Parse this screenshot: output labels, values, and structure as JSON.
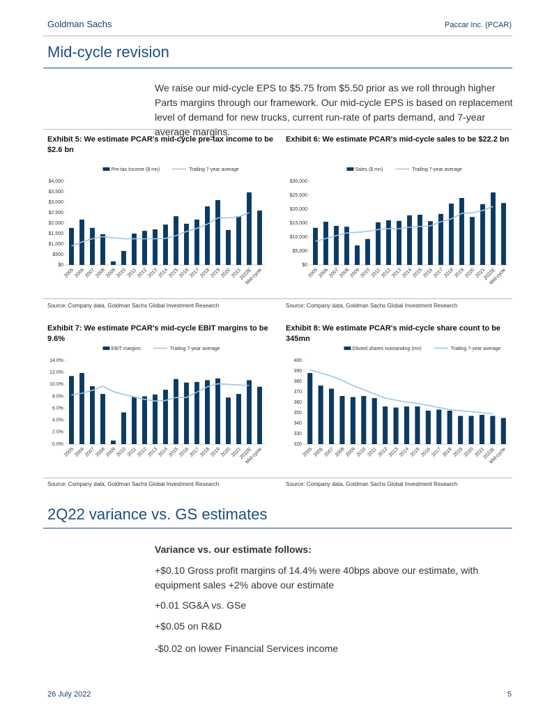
{
  "header": {
    "left": "Goldman Sachs",
    "right": "Paccar Inc. (PCAR)"
  },
  "section1": {
    "title": "Mid-cycle revision",
    "paragraph": "We raise our mid-cycle EPS to $5.75 from $5.50 prior as we roll through higher Parts margins through our framework. Our mid-cycle EPS is based on replacement level of demand for new trucks, current run-rate of parts demand, and 7-year average margins."
  },
  "chart_data": [
    {
      "type": "bar",
      "title": "Exhibit 5: We estimate PCAR's mid-cycle pre-tax income to be $2.6 bn",
      "categories": [
        "2005",
        "2006",
        "2007",
        "2008",
        "2009",
        "2010",
        "2011",
        "2012",
        "2013",
        "2014",
        "2015",
        "2016",
        "2017",
        "2018",
        "2019",
        "2020",
        "2021",
        "2022E",
        "Mid-cycle"
      ],
      "series": [
        {
          "name": "Pre-tax Income ($ mn)",
          "type": "bar",
          "color": "#0b3a63",
          "values": [
            1770,
            2170,
            1770,
            1470,
            170,
            670,
            1500,
            1630,
            1700,
            1930,
            2330,
            1970,
            2170,
            2800,
            3100,
            1670,
            2330,
            3470,
            2600
          ]
        },
        {
          "name": "Trailing 7-year average",
          "type": "line",
          "color": "#9dc3e6",
          "values": [
            900,
            1100,
            1250,
            1350,
            1300,
            1250,
            1250,
            1250,
            1250,
            1270,
            1400,
            1600,
            1750,
            1950,
            2250,
            2250,
            2300,
            2500,
            null
          ]
        }
      ],
      "ylim": [
        0,
        4000
      ],
      "yticks": [
        {
          "value": 0,
          "label": "$0"
        },
        {
          "value": 500,
          "label": "$500"
        },
        {
          "value": 1000,
          "label": "$1,000"
        },
        {
          "value": 1500,
          "label": "$1,500"
        },
        {
          "value": 2000,
          "label": "$2,000"
        },
        {
          "value": 2500,
          "label": "$2,500"
        },
        {
          "value": 3000,
          "label": "$3,000"
        },
        {
          "value": 3500,
          "label": "$3,500"
        },
        {
          "value": 4000,
          "label": "$4,000"
        }
      ],
      "legend": "top",
      "source": "Source: Company data, Goldman Sachs Global Investment Research"
    },
    {
      "type": "bar",
      "title": "Exhibit 6: We estimate PCAR's mid-cycle sales to be $22.2 bn",
      "categories": [
        "2005",
        "2006",
        "2007",
        "2008",
        "2009",
        "2010",
        "2011",
        "2012",
        "2013",
        "2014",
        "2015",
        "2016",
        "2017",
        "2018",
        "2019",
        "2020",
        "2021",
        "2022E",
        "Mid-cycle"
      ],
      "series": [
        {
          "name": "Sales ($ mn)",
          "type": "bar",
          "color": "#0b3a63",
          "values": [
            13300,
            15500,
            14000,
            13700,
            7000,
            9300,
            15300,
            16000,
            15800,
            17800,
            18000,
            15700,
            18300,
            22000,
            24000,
            17200,
            21800,
            26000,
            22200
          ]
        },
        {
          "name": "Trailing 7-year average",
          "type": "line",
          "color": "#9dc3e6",
          "values": [
            8500,
            9500,
            10500,
            11500,
            11700,
            12000,
            12700,
            13000,
            13000,
            13500,
            13800,
            14000,
            15500,
            16500,
            18500,
            18700,
            19500,
            21000,
            null
          ]
        }
      ],
      "ylim": [
        0,
        30000
      ],
      "yticks": [
        {
          "value": 0,
          "label": "$0"
        },
        {
          "value": 5000,
          "label": "$5,000"
        },
        {
          "value": 10000,
          "label": "$10,000"
        },
        {
          "value": 15000,
          "label": "$15,000"
        },
        {
          "value": 20000,
          "label": "$20,000"
        },
        {
          "value": 25000,
          "label": "$25,000"
        },
        {
          "value": 30000,
          "label": "$30,000"
        }
      ],
      "legend": "top",
      "source": "Source: Company data, Goldman Sachs Global Investment Research"
    },
    {
      "type": "bar",
      "title": "Exhibit 7: We estimate PCAR's mid-cycle EBIT margins to be 9.6%",
      "categories": [
        "2005",
        "2006",
        "2007",
        "2008",
        "2009",
        "2010",
        "2011",
        "2012",
        "2013",
        "2014",
        "2015",
        "2016",
        "2017",
        "2018",
        "2019",
        "2020",
        "2021",
        "2022E",
        "Mid-cycle"
      ],
      "series": [
        {
          "name": "EBIT margins",
          "type": "bar",
          "color": "#0b3a63",
          "values": [
            11.4,
            11.9,
            9.7,
            8.4,
            0.6,
            5.3,
            7.9,
            8.0,
            8.3,
            9.1,
            10.9,
            10.3,
            10.4,
            10.7,
            11.0,
            7.8,
            8.4,
            10.7,
            9.6
          ]
        },
        {
          "name": "Trailing 7-year average",
          "type": "line",
          "color": "#9dc3e6",
          "values": [
            8.2,
            8.5,
            9.0,
            9.7,
            8.8,
            8.3,
            7.9,
            7.5,
            7.2,
            7.3,
            7.8,
            7.8,
            8.7,
            9.6,
            10.1,
            10.0,
            9.9,
            9.8,
            null
          ]
        }
      ],
      "ylim": [
        0,
        14
      ],
      "yticks": [
        {
          "value": 0,
          "label": "0.0%"
        },
        {
          "value": 2,
          "label": "2.0%"
        },
        {
          "value": 4,
          "label": "4.0%"
        },
        {
          "value": 6,
          "label": "6.0%"
        },
        {
          "value": 8,
          "label": "8.0%"
        },
        {
          "value": 10,
          "label": "10.0%"
        },
        {
          "value": 12,
          "label": "12.0%"
        },
        {
          "value": 14,
          "label": "14.0%"
        }
      ],
      "legend": "top",
      "source": "Source: Company data, Goldman Sachs Global Investment Research"
    },
    {
      "type": "bar",
      "title": "Exhibit 8: We estimate PCAR's mid-cycle share count to be 345mn",
      "categories": [
        "2005",
        "2006",
        "2007",
        "2008",
        "2009",
        "2010",
        "2011",
        "2012",
        "2013",
        "2014",
        "2015",
        "2016",
        "2017",
        "2018",
        "2019",
        "2020",
        "2021",
        "2022E",
        "Mid-cycle"
      ],
      "series": [
        {
          "name": "Diluted shares outstanding (mn)",
          "type": "bar",
          "color": "#0b3a63",
          "values": [
            388,
            376,
            373,
            366,
            365,
            366,
            364,
            356,
            355,
            356,
            356,
            352,
            353,
            352,
            347,
            347,
            348,
            347,
            345
          ]
        },
        {
          "name": "Trailing 7-year average",
          "type": "line",
          "color": "#9dc3e6",
          "values": [
            391,
            388,
            385,
            381,
            376,
            372,
            368,
            364,
            362,
            360,
            359,
            357,
            355,
            353,
            352,
            351,
            350,
            349,
            null
          ]
        }
      ],
      "ylim": [
        320,
        400
      ],
      "yticks": [
        320,
        330,
        340,
        350,
        360,
        370,
        380,
        390,
        400
      ],
      "legend": "top",
      "source": "Source: Company data, Goldman Sachs Global Investment Research"
    }
  ],
  "section2": {
    "title": "2Q22 variance vs. GS estimates",
    "subtitle": "Variance vs. our estimate follows:",
    "items": [
      "+$0.10 Gross profit margins of 14.4% were 40bps above our estimate, with equipment sales +2% above our estimate",
      "+0.01 SG&A vs. GSe",
      "+$0.05 on R&D",
      "-$0.02 on lower Financial Services income"
    ]
  },
  "footer": {
    "date": "26 July 2022",
    "page": "5"
  }
}
